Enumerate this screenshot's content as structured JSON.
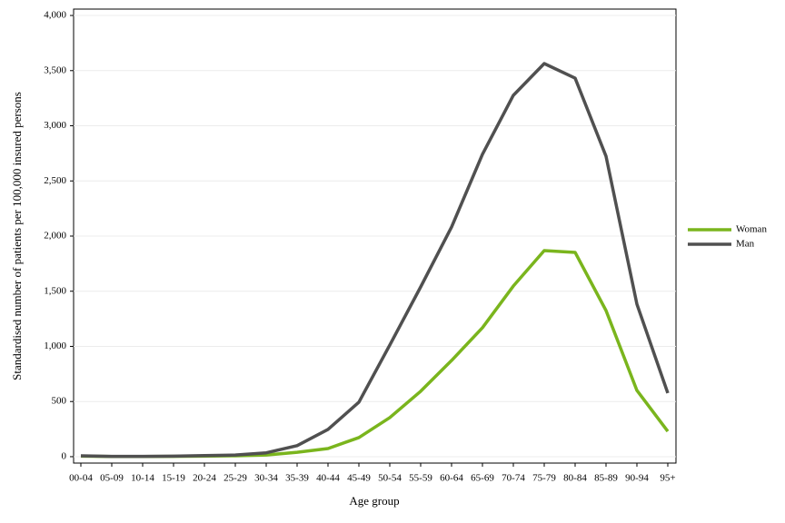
{
  "chart_data": {
    "type": "line",
    "xlabel": "Age group",
    "ylabel": "Standardised number of patients per 100,000 insured persons",
    "categories": [
      "00-04",
      "05-09",
      "10-14",
      "15-19",
      "20-24",
      "25-29",
      "30-34",
      "35-39",
      "40-44",
      "45-49",
      "50-54",
      "55-59",
      "60-64",
      "65-69",
      "70-74",
      "75-79",
      "80-84",
      "85-89",
      "90-94",
      "95+"
    ],
    "series": [
      {
        "name": "Woman",
        "color": "#7ab51d",
        "values": [
          5,
          2,
          2,
          3,
          5,
          8,
          15,
          40,
          74,
          173,
          354,
          593,
          872,
          1169,
          1547,
          1868,
          1852,
          1325,
          601,
          230
        ]
      },
      {
        "name": "Man",
        "color": "#505050",
        "values": [
          8,
          3,
          3,
          5,
          10,
          15,
          35,
          100,
          247,
          494,
          1012,
          1539,
          2082,
          2741,
          3276,
          3564,
          3432,
          2724,
          1383,
          576
        ]
      }
    ],
    "ylim": [
      -58,
      4058
    ],
    "yticks": [
      0,
      500,
      {
        "value": 1000,
        "label": "1,000"
      },
      {
        "value": 1500,
        "label": "1,500"
      },
      {
        "value": 2000,
        "label": "2,000"
      },
      {
        "value": 2500,
        "label": "2,500"
      },
      {
        "value": 3000,
        "label": "3,000"
      },
      {
        "value": 3500,
        "label": "3,500"
      },
      {
        "value": 4000,
        "label": "4,000"
      }
    ],
    "grid": true,
    "legend": "right"
  }
}
